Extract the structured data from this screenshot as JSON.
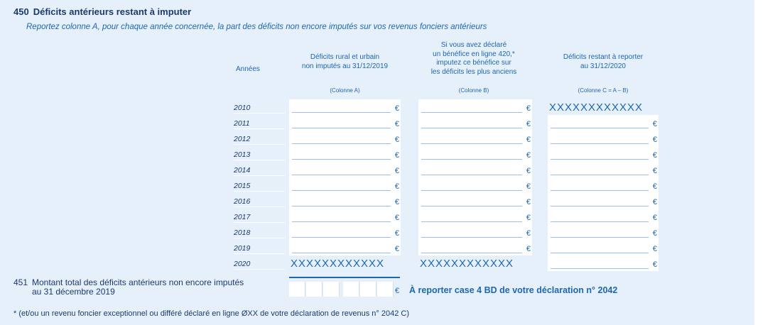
{
  "section": {
    "number": "450",
    "title": "Déficits antérieurs restant à imputer",
    "instruction": "Reportez colonne A, pour chaque année concernée, la part des déficits non encore imputés sur vos revenus fonciers antérieurs"
  },
  "table": {
    "years_header": "Années",
    "col_a": {
      "line1": "Déficits rural et urbain",
      "line2": "non imputés au 31/12/2019",
      "ref": "(Colonne A)"
    },
    "col_b": {
      "line1": "Si vous avez déclaré",
      "line2": "un bénéfice en ligne 420,*",
      "line3": "imputez ce bénéfice sur",
      "line4": "les déficits les plus anciens",
      "ref": "(Colonne B)"
    },
    "col_c": {
      "line1": "Déficits restant à reporter",
      "line2": "au 31/12/2020",
      "ref": "(Colonne C = A – B)"
    },
    "years": [
      "2010",
      "2011",
      "2012",
      "2013",
      "2014",
      "2015",
      "2016",
      "2017",
      "2018",
      "2019",
      "2020"
    ],
    "currency": "€",
    "blocked": "XXXXXXXXXXXX"
  },
  "line451": {
    "number": "451",
    "label_line1": "Montant total des déficits antérieurs non encore imputés",
    "label_line2": "au 31 décembre 2019",
    "currency": "€",
    "report": "À reporter case 4 BD de votre déclaration n° 2042"
  },
  "footnote": "* (et/ou un revenu foncier exceptionnel ou différé déclaré en ligne ØXX de votre déclaration de revenus n° 2042 C)"
}
